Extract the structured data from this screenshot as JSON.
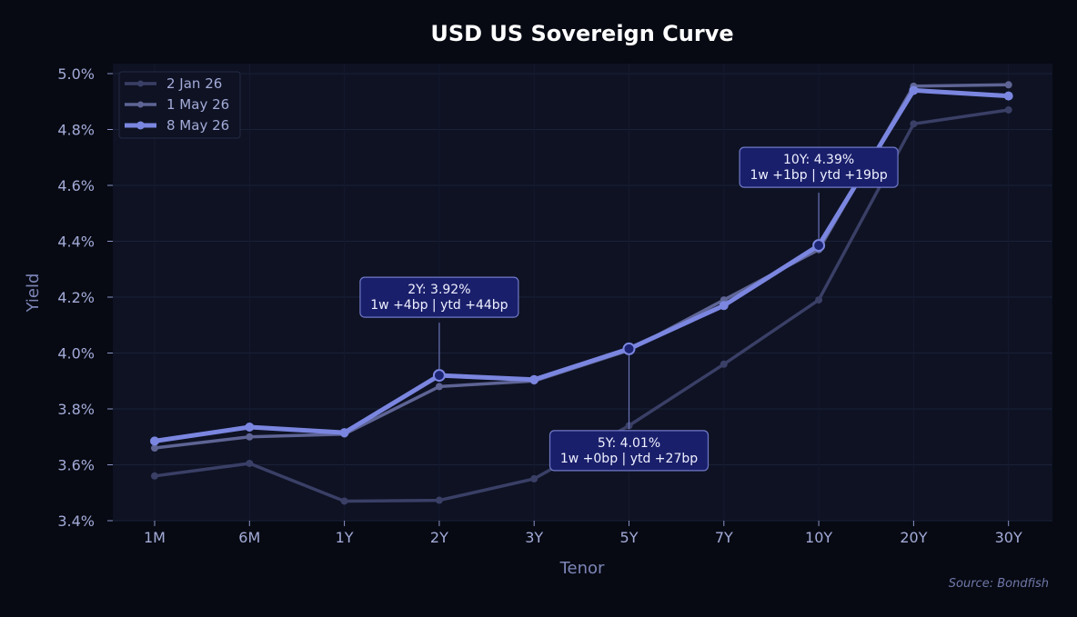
{
  "chart_data": {
    "type": "line",
    "title": "USD US Sovereign Curve",
    "xlabel": "Tenor",
    "ylabel": "Yield",
    "categories": [
      "1M",
      "6M",
      "1Y",
      "2Y",
      "3Y",
      "5Y",
      "7Y",
      "10Y",
      "20Y",
      "30Y"
    ],
    "ylim": [
      3.4,
      5.0
    ],
    "yticks": [
      3.4,
      3.6,
      3.8,
      4.0,
      4.2,
      4.4,
      4.6,
      4.8,
      5.0
    ],
    "ytick_labels": [
      "3.4%",
      "3.6%",
      "3.8%",
      "4.0%",
      "4.2%",
      "4.4%",
      "4.6%",
      "4.8%",
      "5.0%"
    ],
    "grid": true,
    "legend_position": "top-left",
    "series": [
      {
        "name": "2 Jan 26",
        "color": "#3a3f66",
        "values": [
          3.56,
          3.605,
          3.47,
          3.473,
          3.55,
          3.74,
          3.96,
          4.19,
          4.82,
          4.87
        ]
      },
      {
        "name": "1 May 26",
        "color": "#5e6494",
        "values": [
          3.66,
          3.7,
          3.71,
          3.88,
          3.9,
          4.01,
          4.19,
          4.37,
          4.955,
          4.96
        ]
      },
      {
        "name": "8 May 26",
        "color": "#7b86e0",
        "values": [
          3.685,
          3.735,
          3.715,
          3.92,
          3.905,
          4.015,
          4.17,
          4.385,
          4.94,
          4.92
        ]
      }
    ],
    "annotations": [
      {
        "category": "2Y",
        "value": 3.92,
        "line1": "2Y: 3.92%",
        "line2": "1w +4bp | ytd +44bp",
        "placement": "above"
      },
      {
        "category": "5Y",
        "value": 4.015,
        "line1": "5Y: 4.01%",
        "line2": "1w +0bp | ytd +27bp",
        "placement": "below"
      },
      {
        "category": "10Y",
        "value": 4.385,
        "line1": "10Y: 4.39%",
        "line2": "1w +1bp | ytd +19bp",
        "placement": "above"
      }
    ],
    "source": "Source: Bondfish"
  }
}
